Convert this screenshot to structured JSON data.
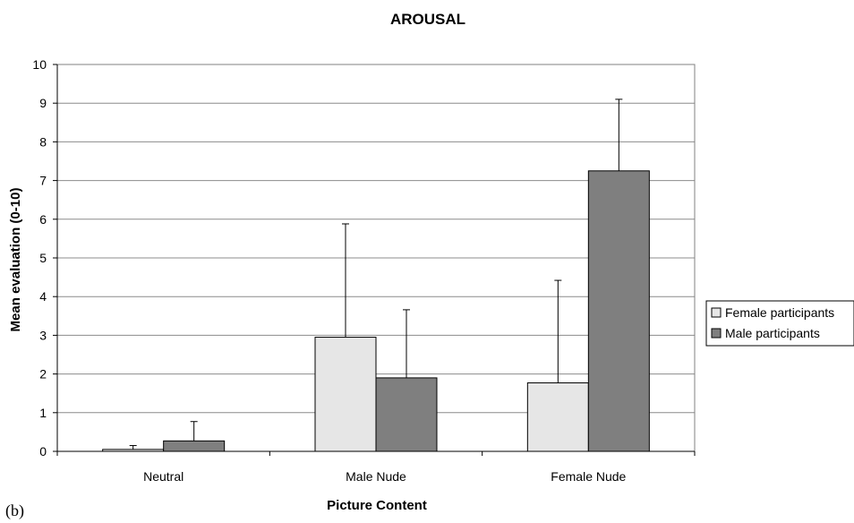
{
  "panel_label": "(b)",
  "chart_data": {
    "type": "bar",
    "title": "AROUSAL",
    "xlabel": "Picture Content",
    "ylabel": "Mean evaluation (0-10)",
    "ylim": [
      0,
      10
    ],
    "yticks": [
      0,
      1,
      2,
      3,
      4,
      5,
      6,
      7,
      8,
      9,
      10
    ],
    "grid": true,
    "legend_position": "right",
    "categories": [
      "Neutral",
      "Male Nude",
      "Female Nude"
    ],
    "series": [
      {
        "name": "Female participants",
        "color": "#e6e6e6",
        "values": [
          0.05,
          2.95,
          1.77
        ],
        "error": [
          0.1,
          2.93,
          2.65
        ]
      },
      {
        "name": "Male participants",
        "color": "#7f7f7f",
        "values": [
          0.27,
          1.9,
          7.25
        ],
        "error": [
          0.5,
          1.76,
          1.85
        ]
      }
    ]
  }
}
